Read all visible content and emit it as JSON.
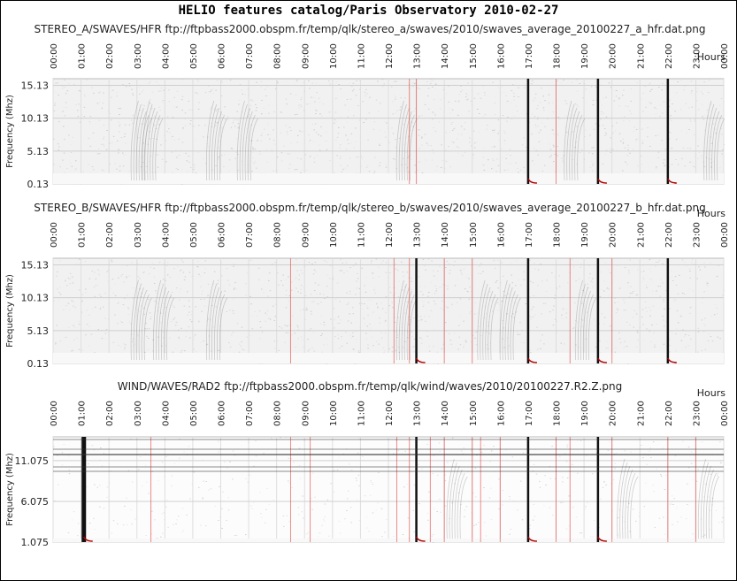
{
  "page_title": "HELIO features catalog/Paris Observatory    2010-02-27",
  "chart_data": [
    {
      "type": "heatmap",
      "title": "STEREO_A/SWAVES/HFR ftp://ftpbass2000.obspm.fr/temp/qlk/stereo_a/swaves/2010/swaves_average_20100227_a_hfr.dat.png",
      "xlabel": "Hours",
      "ylabel": "Frequency (Mhz)",
      "x_ticks": [
        "00:00",
        "01:00",
        "02:00",
        "03:00",
        "04:00",
        "05:00",
        "06:00",
        "07:00",
        "08:00",
        "09:00",
        "10:00",
        "11:00",
        "12:00",
        "13:00",
        "14:00",
        "15:00",
        "16:00",
        "17:00",
        "18:00",
        "19:00",
        "20:00",
        "21:00",
        "22:00",
        "23:00",
        "00:00"
      ],
      "xlim": [
        0,
        24
      ],
      "y_ticks": [
        "15.13",
        "10.13",
        "5.13",
        "0.13"
      ],
      "y_values": [
        15.13,
        10.13,
        5.13,
        0.13
      ],
      "ylim": [
        0.13,
        16.13
      ],
      "grid": true,
      "event_lines": [
        12.75,
        13.0,
        17.0,
        18.0,
        19.5,
        22.0
      ],
      "strong_bursts": [
        17.0,
        19.5,
        22.0
      ],
      "faint_bursts": [
        2.8,
        3.2,
        5.5,
        6.6,
        12.3,
        18.3,
        23.3
      ]
    },
    {
      "type": "heatmap",
      "title": "STEREO_B/SWAVES/HFR ftp://ftpbass2000.obspm.fr/temp/qlk/stereo_b/swaves/2010/swaves_average_20100227_b_hfr.dat.png",
      "xlabel": "Hours",
      "ylabel": "Frequency (Mhz)",
      "x_ticks": [
        "00:00",
        "01:00",
        "02:00",
        "03:00",
        "04:00",
        "05:00",
        "06:00",
        "07:00",
        "08:00",
        "09:00",
        "10:00",
        "11:00",
        "12:00",
        "13:00",
        "14:00",
        "15:00",
        "16:00",
        "17:00",
        "18:00",
        "19:00",
        "20:00",
        "21:00",
        "22:00",
        "23:00",
        "00:00"
      ],
      "xlim": [
        0,
        24
      ],
      "y_ticks": [
        "15.13",
        "10.13",
        "5.13",
        "0.13"
      ],
      "y_values": [
        15.13,
        10.13,
        5.13,
        0.13
      ],
      "ylim": [
        0.13,
        16.13
      ],
      "grid": true,
      "event_lines": [
        8.5,
        12.2,
        12.75,
        13.0,
        14.0,
        15.0,
        17.0,
        18.5,
        19.5,
        20.0,
        22.0
      ],
      "strong_bursts": [
        13.0,
        17.0,
        19.5,
        22.0
      ],
      "faint_bursts": [
        2.8,
        3.6,
        5.5,
        12.3,
        15.2,
        16.0,
        18.7
      ]
    },
    {
      "type": "heatmap",
      "title": "WIND/WAVES/RAD2 ftp://ftpbass2000.obspm.fr/temp/qlk/wind/waves/2010/20100227.R2.Z.png",
      "xlabel": "Hours",
      "ylabel": "Frequency (Mhz)",
      "x_ticks": [
        "00:00",
        "01:00",
        "02:00",
        "03:00",
        "04:00",
        "05:00",
        "06:00",
        "07:00",
        "08:00",
        "09:00",
        "10:00",
        "11:00",
        "12:00",
        "13:00",
        "14:00",
        "15:00",
        "16:00",
        "17:00",
        "18:00",
        "19:00",
        "20:00",
        "21:00",
        "22:00",
        "23:00",
        "00:00"
      ],
      "xlim": [
        0,
        24
      ],
      "y_ticks": [
        "11.075",
        "6.075",
        "1.075"
      ],
      "y_values": [
        11.075,
        6.075,
        1.075
      ],
      "ylim": [
        1.075,
        14.0
      ],
      "grid": true,
      "event_lines": [
        3.5,
        8.5,
        9.2,
        12.3,
        12.75,
        13.0,
        13.5,
        14.0,
        15.0,
        15.3,
        16.0,
        17.0,
        18.0,
        18.5,
        19.5,
        20.0,
        22.0,
        23.0
      ],
      "strong_bursts": [
        1.1,
        13.0,
        17.0,
        19.5
      ],
      "faint_bursts": [
        14.1,
        20.2,
        23.1
      ]
    }
  ]
}
